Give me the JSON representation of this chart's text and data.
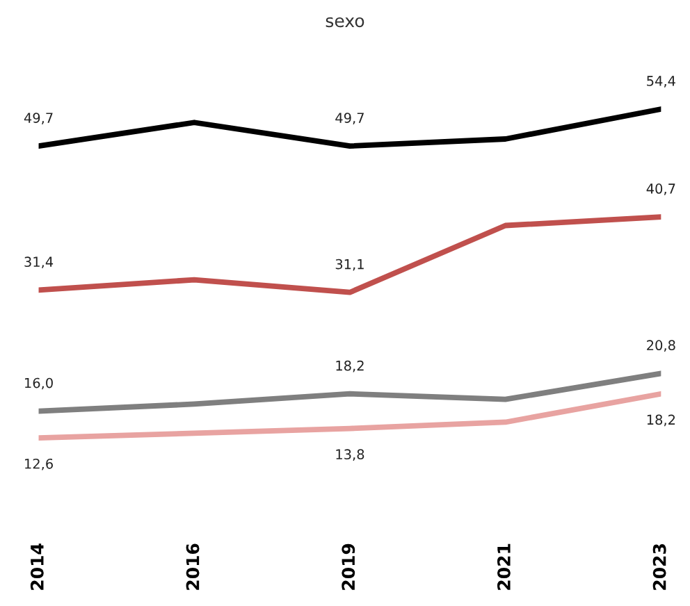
{
  "chart_data": {
    "type": "line",
    "title": "sexo",
    "categories": [
      "2014",
      "2016",
      "2019",
      "2021",
      "2023"
    ],
    "tick_labels": "x",
    "grid": false,
    "series": [
      {
        "color": "#000000",
        "values": [
          49.7,
          52.7,
          49.7,
          50.6,
          54.4
        ],
        "value_labels": [
          "49,7",
          null,
          "49,7",
          null,
          "54,4"
        ]
      },
      {
        "color": "#c0504d",
        "values": [
          31.4,
          32.7,
          31.1,
          39.6,
          40.7
        ],
        "value_labels": [
          "31,4",
          null,
          "31,1",
          null,
          "40,7"
        ]
      },
      {
        "color": "#7f7f7f",
        "values": [
          16.0,
          16.9,
          18.2,
          17.5,
          20.8
        ],
        "value_labels": [
          "16,0",
          null,
          "18,2",
          null,
          "20,8"
        ]
      },
      {
        "color": "#e8a3a1",
        "values": [
          12.6,
          13.2,
          13.8,
          14.6,
          18.2
        ],
        "value_labels": [
          "12,6",
          null,
          "13,8",
          null,
          "18,2"
        ]
      }
    ]
  }
}
